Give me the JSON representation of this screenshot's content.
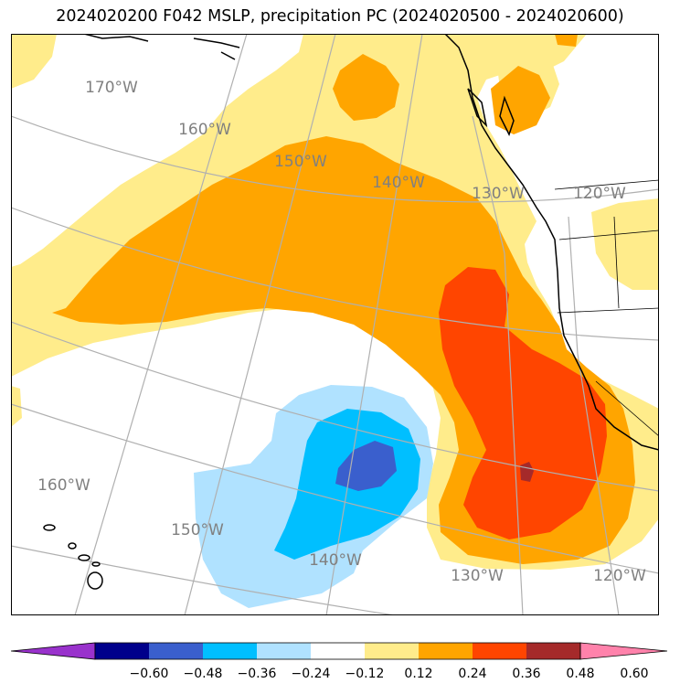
{
  "title": "2024020200 F042 MSLP, precipitation PC (2024020500 - 2024020600)",
  "colors": {
    "levels": [
      "#9932cc",
      "#00008b",
      "#3a5fcd",
      "#00bfff",
      "#b0e2ff",
      "#ffffff",
      "#ffec8b",
      "#ffa500",
      "#ff4500",
      "#a52a2a",
      "#ff82ab"
    ],
    "graticule": "#b0b0b0",
    "coast": "#000000",
    "label": "#808080"
  },
  "colorbar": {
    "ticks": [
      "−0.60",
      "−0.48",
      "−0.36",
      "−0.24",
      "−0.12",
      "0.12",
      "0.24",
      "0.36",
      "0.48",
      "0.60"
    ],
    "extend": "both"
  },
  "map": {
    "longitude_labels": [
      "170°W",
      "160°W",
      "150°W",
      "140°W",
      "130°W",
      "120°W",
      "160°W",
      "150°W",
      "140°W",
      "130°W",
      "120°W"
    ],
    "fields": [
      {
        "name": "positive-0.12",
        "color": "#ffec8b"
      },
      {
        "name": "positive-0.24",
        "color": "#ffa500"
      },
      {
        "name": "positive-0.36",
        "color": "#ff4500"
      },
      {
        "name": "positive-0.48",
        "color": "#a52a2a"
      },
      {
        "name": "negative-0.12",
        "color": "#b0e2ff"
      },
      {
        "name": "negative-0.24",
        "color": "#00bfff"
      },
      {
        "name": "negative-0.36",
        "color": "#3a5fcd"
      }
    ]
  }
}
